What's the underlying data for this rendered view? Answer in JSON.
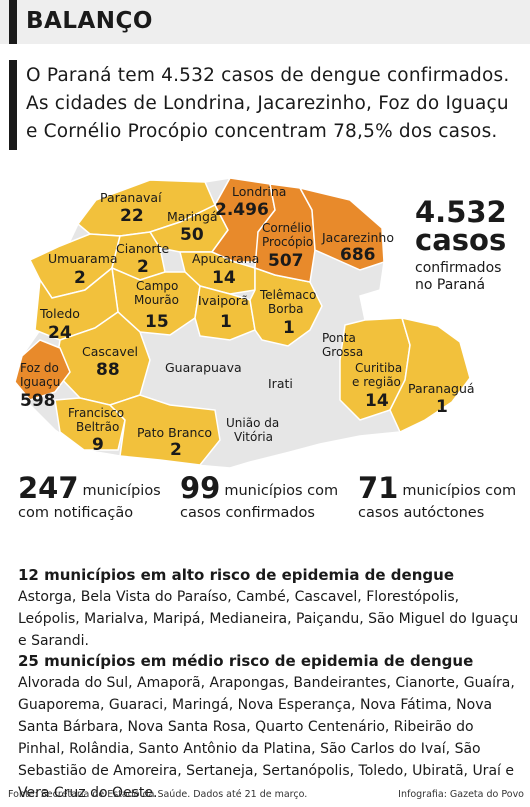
{
  "header": {
    "title": "BALANÇO"
  },
  "intro": "O Paraná tem 4.532 casos de dengue confirmados. As cidades de Londrina, Jacarezinho, Foz do Iguaçu e Cornélio Procópio concentram 78,5% dos casos.",
  "colors": {
    "high": "#e88a2b",
    "medium": "#f2c13c",
    "none": "#e6e6e6",
    "border": "#ffffff"
  },
  "map": {
    "regions": [
      {
        "name": "Paranavaí",
        "cases": "22"
      },
      {
        "name": "Londrina",
        "cases": "2.496"
      },
      {
        "name": "Maringá",
        "cases": "50"
      },
      {
        "name": "Cornélio Procópio",
        "cases": "507"
      },
      {
        "name": "Jacarezinho",
        "cases": "686"
      },
      {
        "name": "Cianorte",
        "cases": "2"
      },
      {
        "name": "Umuarama",
        "cases": "2"
      },
      {
        "name": "Apucarana",
        "cases": "14"
      },
      {
        "name": "Campo Mourão",
        "cases": "15"
      },
      {
        "name": "Ivaiporã",
        "cases": "1"
      },
      {
        "name": "Telêmaco Borba",
        "cases": "1"
      },
      {
        "name": "Toledo",
        "cases": "24"
      },
      {
        "name": "Cascavel",
        "cases": "88"
      },
      {
        "name": "Foz do Iguaçu",
        "cases": "598"
      },
      {
        "name": "Francisco Beltrão",
        "cases": "9"
      },
      {
        "name": "Pato Branco",
        "cases": "2"
      },
      {
        "name": "Curitiba e região",
        "cases": "14"
      },
      {
        "name": "Paranaguá",
        "cases": "1"
      }
    ],
    "no_case_regions": [
      "Guarapuava",
      "Irati",
      "Ponta Grossa",
      "União da Vitória"
    ]
  },
  "total": {
    "value": "4.532",
    "unit": "casos",
    "label": "confirmados no Paraná"
  },
  "stats": [
    {
      "value": "247",
      "label": "municípios com notificação"
    },
    {
      "value": "99",
      "label": "municípios com casos confirmados"
    },
    {
      "value": "71",
      "label": "municípios com casos autóctones"
    }
  ],
  "high_risk": {
    "title": "12 municípios em alto risco de epidemia de dengue",
    "text": "Astorga, Bela Vista do Paraíso, Cambé, Cascavel, Florestópolis, Leópolis, Marialva, Maripá, Medianeira, Paiçandu, São Miguel do Iguaçu e Sarandi."
  },
  "medium_risk": {
    "title": "25 municípios em médio risco de epidemia de dengue",
    "text": "Alvorada do Sul, Amaporã, Arapongas, Bandeirantes, Cianorte, Guaíra, Guaporema, Guaraci, Maringá, Nova Esperança, Nova Fátima, Nova Santa Bárbara, Nova Santa Rosa, Quarto Centenário, Ribeirão do Pinhal, Rolândia, Santo Antônio da Platina, São Carlos do Ivaí, São Sebastião de Amoreira, Sertaneja, Sertanópolis, Toledo, Ubiratã, Uraí e Vera Cruz do Oeste."
  },
  "footer": {
    "source": "Fonte: Secretaria de Estado da Saúde. Dados até 21 de março.",
    "credit": "Infografia: Gazeta do Povo"
  }
}
